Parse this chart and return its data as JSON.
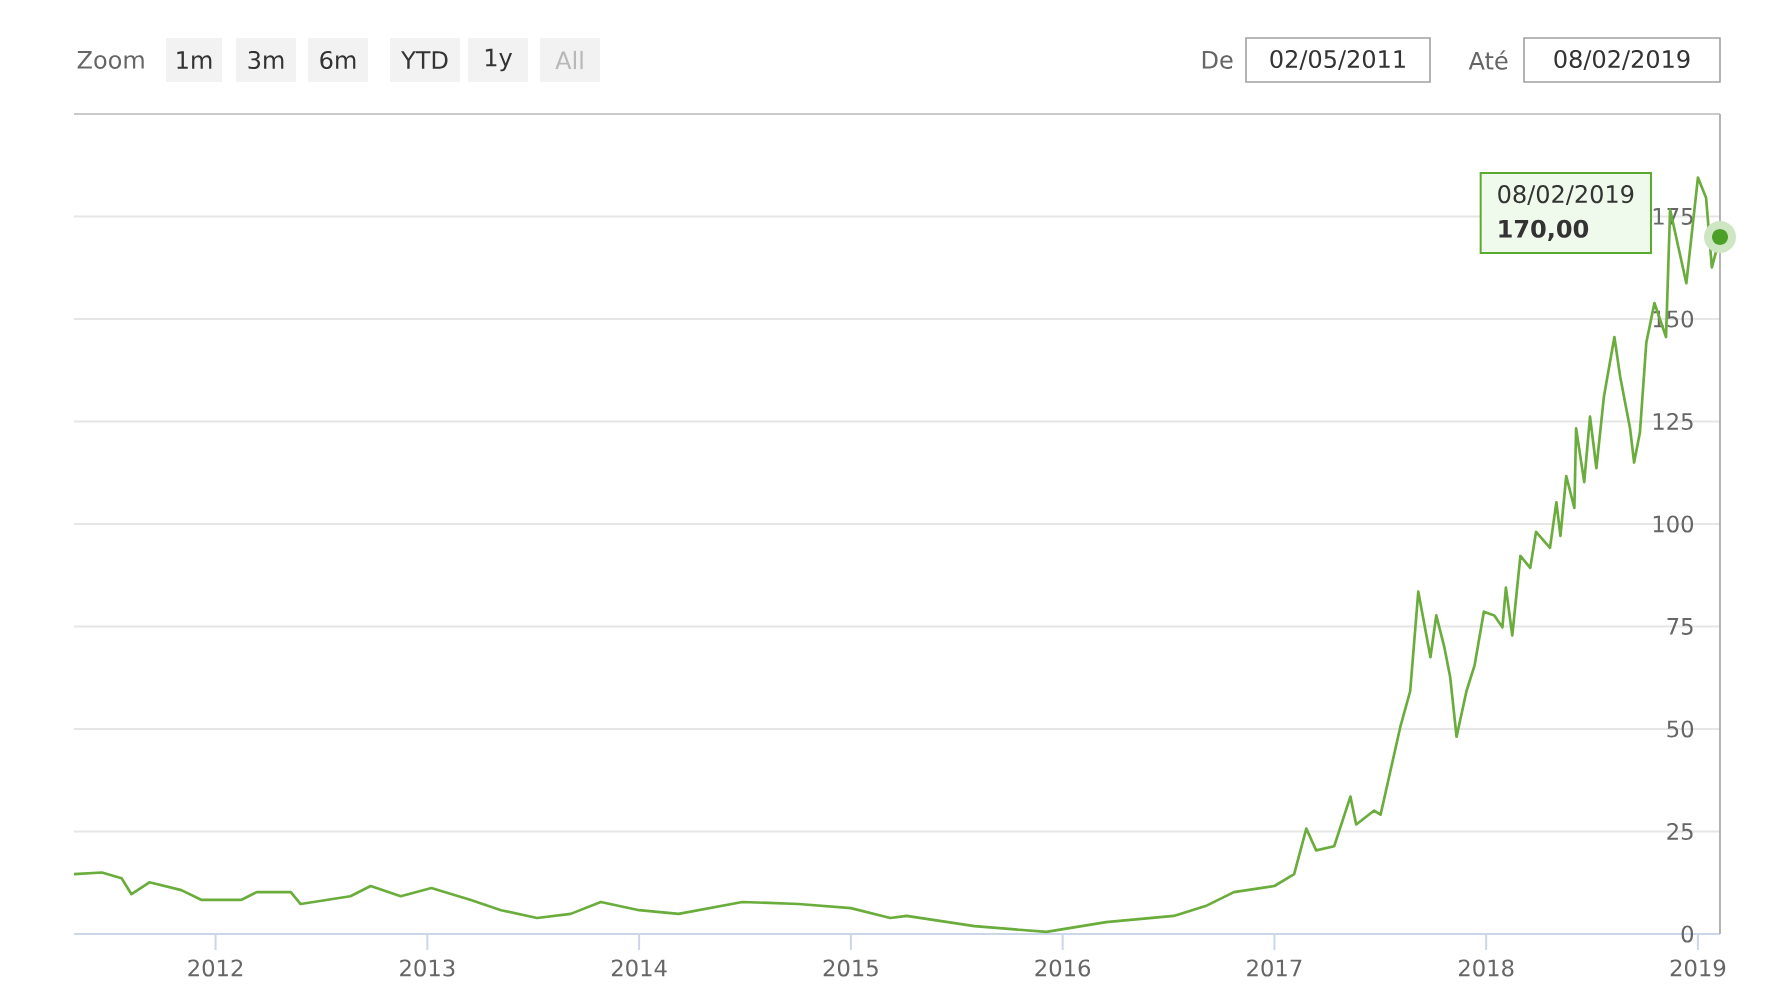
{
  "chart_data": {
    "type": "line",
    "x": [
      "2011-05-02",
      "2011-06-19",
      "2011-07-23",
      "2011-08-09",
      "2011-09-09",
      "2011-11-03",
      "2011-12-08",
      "2012-02-14",
      "2012-03-12",
      "2012-05-10",
      "2012-05-27",
      "2012-08-21",
      "2012-09-25",
      "2012-11-16",
      "2013-01-08",
      "2013-03-17",
      "2013-05-08",
      "2013-07-09",
      "2013-09-05",
      "2013-10-27",
      "2014-01-01",
      "2014-03-10",
      "2014-06-28",
      "2014-10-03",
      "2015-01-01",
      "2015-03-10",
      "2015-04-07",
      "2015-08-02",
      "2015-12-04",
      "2016-03-16",
      "2016-07-11",
      "2016-09-04",
      "2016-10-23",
      "2017-01-01",
      "2017-02-04",
      "2017-02-25",
      "2017-03-14",
      "2017-04-14",
      "2017-05-12",
      "2017-05-22",
      "2017-06-22",
      "2017-07-03",
      "2017-08-06",
      "2017-08-23",
      "2017-09-06",
      "2017-09-27",
      "2017-10-07",
      "2017-10-21",
      "2017-10-31",
      "2017-11-11",
      "2017-11-28",
      "2017-12-12",
      "2017-12-28",
      "2018-01-15",
      "2018-01-29",
      "2018-02-04",
      "2018-02-15",
      "2018-03-01",
      "2018-03-18",
      "2018-03-28",
      "2018-04-21",
      "2018-05-02",
      "2018-05-09",
      "2018-05-19",
      "2018-06-02",
      "2018-06-05",
      "2018-06-19",
      "2018-06-29",
      "2018-07-10",
      "2018-07-23",
      "2018-08-10",
      "2018-08-20",
      "2018-09-06",
      "2018-09-13",
      "2018-09-23",
      "2018-10-04",
      "2018-10-18",
      "2018-11-07",
      "2018-11-14",
      "2018-12-12",
      "2019-01-01",
      "2019-01-15",
      "2019-01-25",
      "2019-02-08"
    ],
    "series": [
      {
        "color": "#6aad3c",
        "values": [
          14.6,
          15.0,
          13.6,
          9.7,
          12.6,
          10.7,
          8.3,
          8.3,
          10.2,
          10.2,
          7.3,
          9.2,
          11.7,
          9.2,
          11.2,
          8.3,
          5.8,
          3.9,
          4.9,
          7.8,
          5.8,
          4.9,
          7.8,
          7.3,
          6.3,
          3.9,
          4.4,
          1.9,
          0.5,
          2.9,
          4.4,
          6.8,
          10.2,
          11.7,
          14.6,
          25.7,
          20.4,
          21.4,
          33.5,
          26.7,
          30.1,
          29.1,
          50.5,
          59.2,
          83.5,
          67.5,
          77.7,
          69.9,
          62.6,
          48.1,
          59.2,
          65.5,
          78.6,
          77.7,
          74.8,
          84.5,
          72.8,
          92.2,
          89.3,
          98.1,
          94.2,
          105.3,
          97.1,
          111.7,
          103.9,
          123.3,
          110.2,
          126.2,
          113.6,
          131.1,
          145.6,
          135.9,
          123.3,
          115.0,
          122.3,
          144.2,
          153.9,
          145.6,
          176.7,
          158.7,
          184.5,
          179.6,
          162.6,
          170
        ]
      }
    ],
    "xlim": [
      "2011-05-02",
      "2019-02-08"
    ],
    "xticks": [
      {
        "value": "2012-01-01",
        "label": "2012"
      },
      {
        "value": "2013-01-01",
        "label": "2013"
      },
      {
        "value": "2014-01-01",
        "label": "2014"
      },
      {
        "value": "2015-01-01",
        "label": "2015"
      },
      {
        "value": "2016-01-01",
        "label": "2016"
      },
      {
        "value": "2017-01-01",
        "label": "2017"
      },
      {
        "value": "2018-01-01",
        "label": "2018"
      },
      {
        "value": "2019-01-01",
        "label": "2019"
      }
    ],
    "ylim": [
      0,
      200
    ],
    "yticks": [
      0,
      25,
      50,
      75,
      100,
      125,
      150,
      175
    ],
    "grid": "y",
    "marker": "none",
    "line_style": "solid",
    "annotations": [
      "Zoom",
      "1m",
      "3m",
      "6m",
      "YTD",
      "1y",
      "All",
      "De",
      "02/05/2011",
      "Até",
      "08/02/2019",
      "08/02/2019",
      "170,00"
    ]
  }
}
